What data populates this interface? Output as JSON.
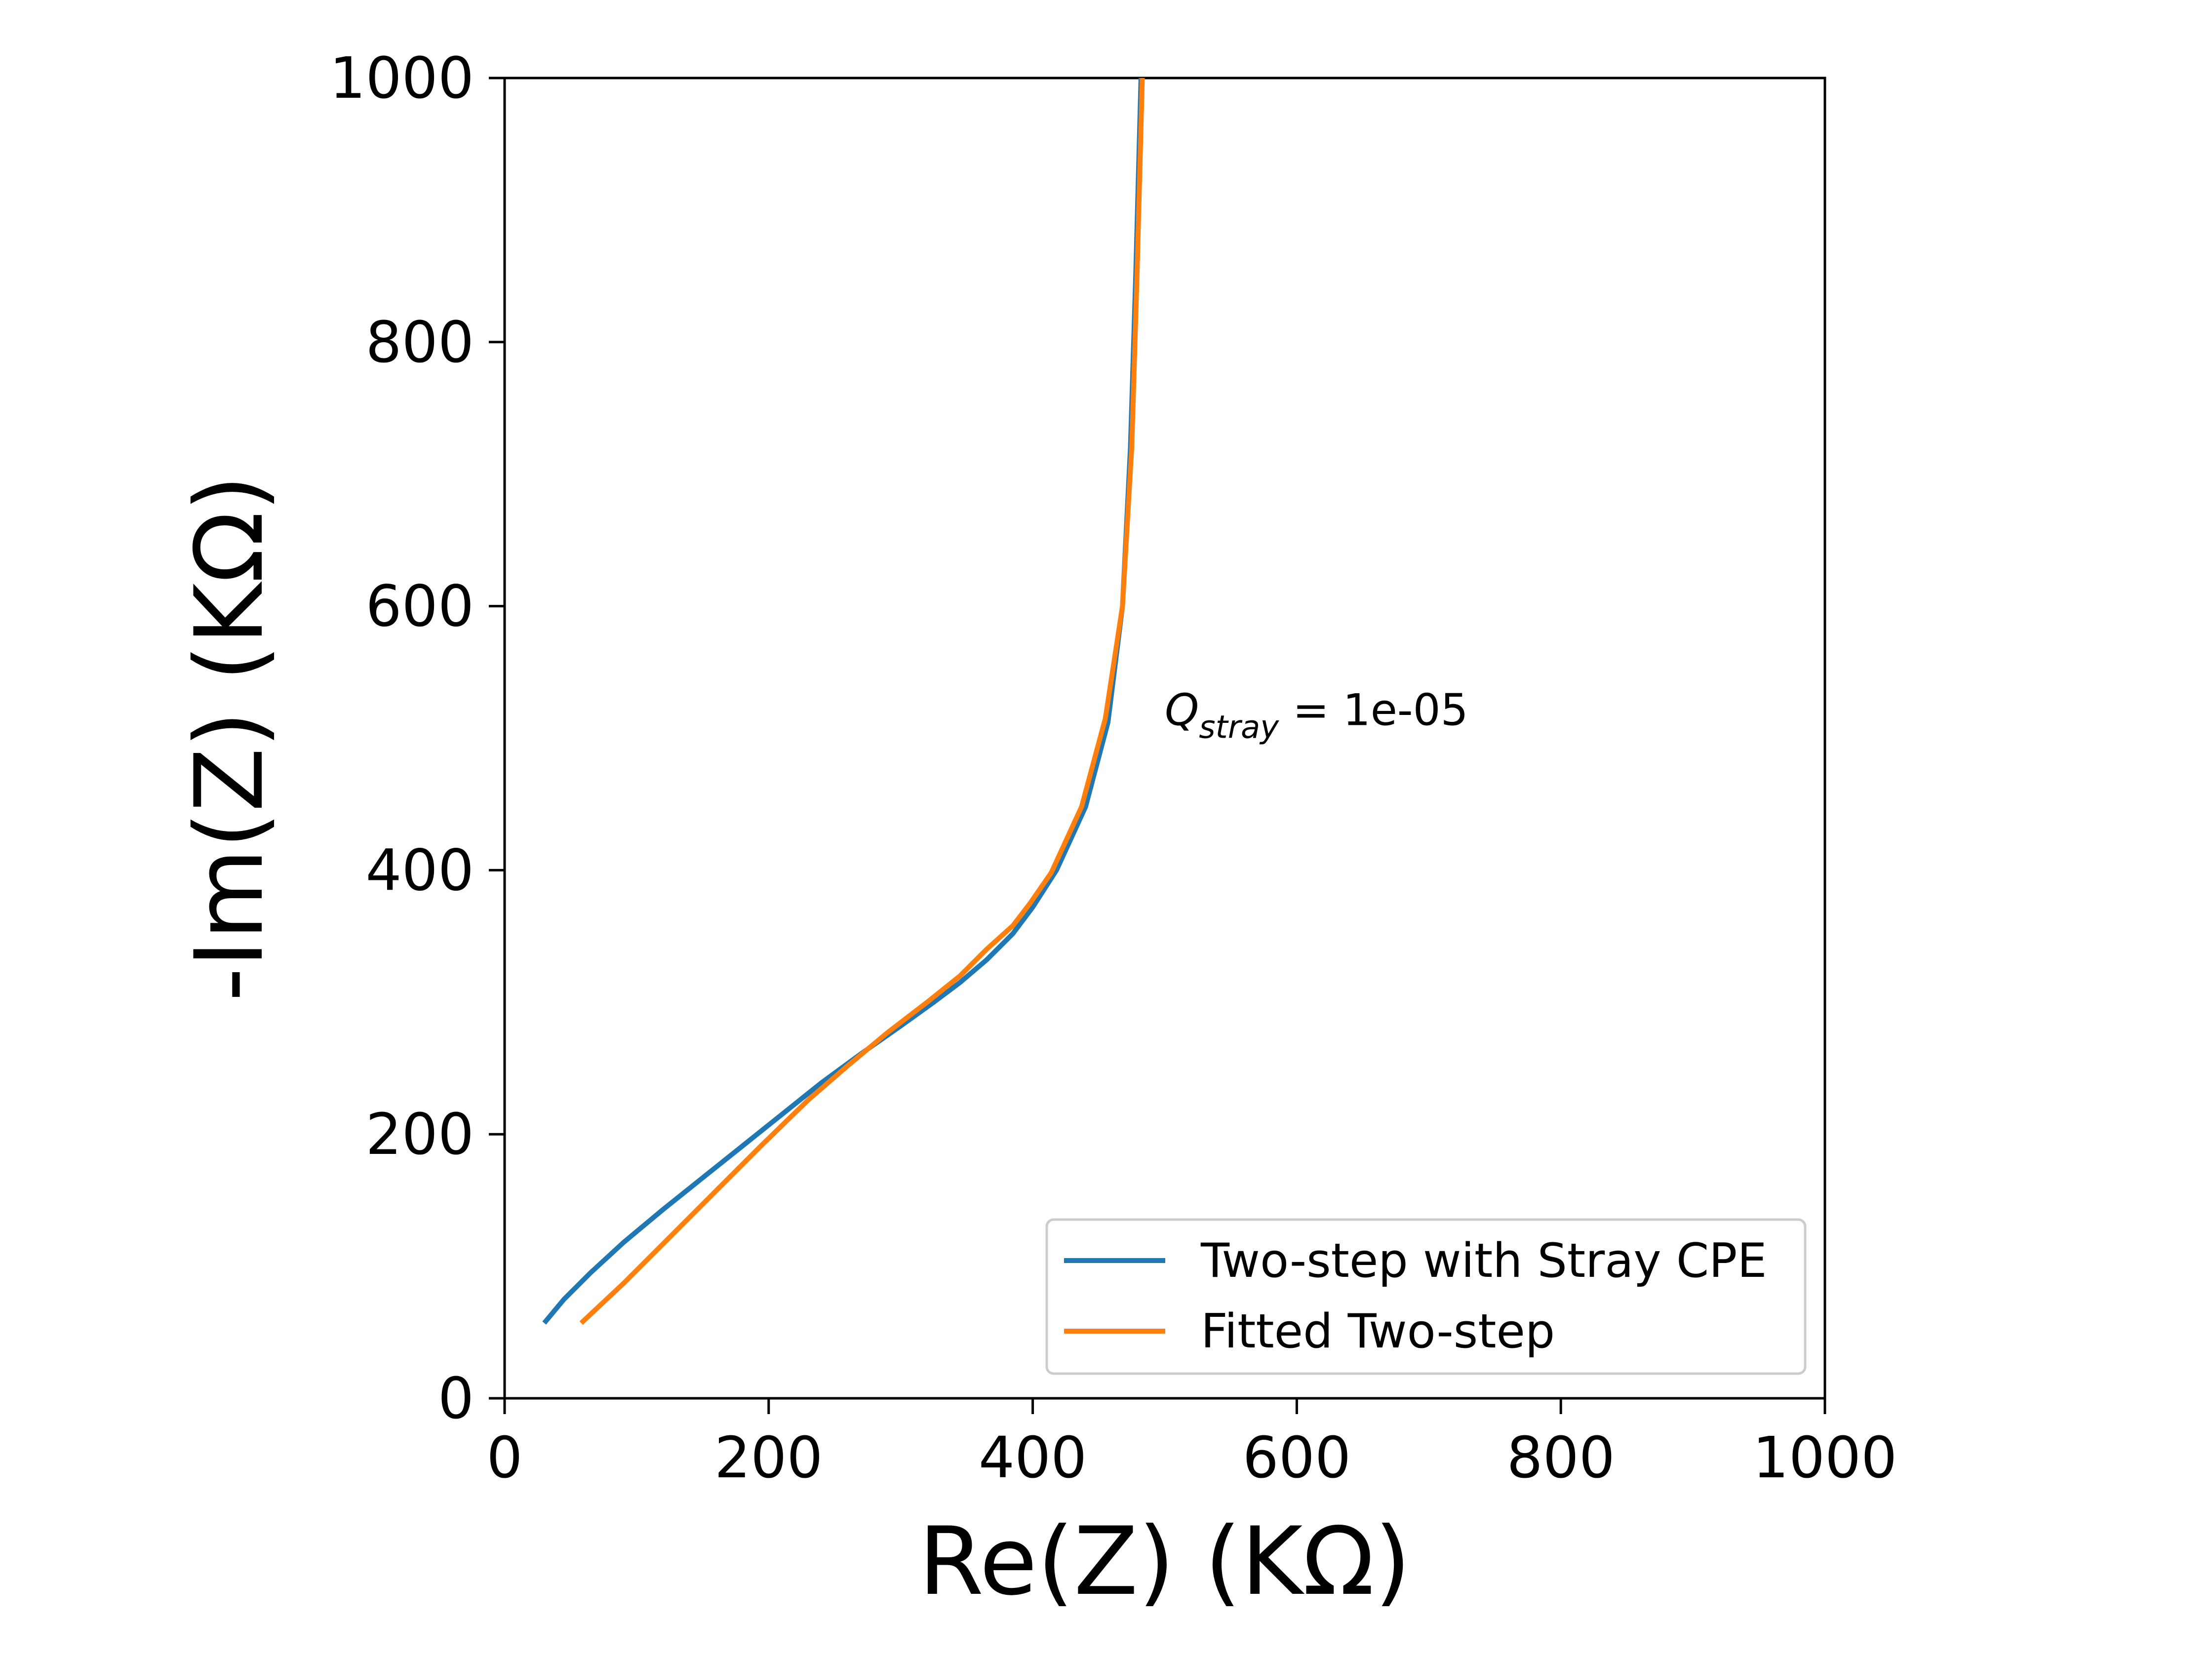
{
  "chart_data": {
    "type": "line",
    "title": "",
    "xlabel": "Re(Z) (KΩ)",
    "ylabel": "-Im(Z) (KΩ)",
    "xlim": [
      0,
      1000
    ],
    "ylim": [
      0,
      1000
    ],
    "xticks": [
      0,
      200,
      400,
      600,
      800,
      1000
    ],
    "yticks": [
      0,
      200,
      400,
      600,
      800,
      1000
    ],
    "xtick_labels": [
      "0",
      "200",
      "400",
      "600",
      "800",
      "1000"
    ],
    "ytick_labels": [
      "0",
      "200",
      "400",
      "600",
      "800",
      "1000"
    ],
    "grid": false,
    "legend_position": "lower-right",
    "annotation": {
      "symbol": "Q",
      "subscript": "stray",
      "equals": " = ",
      "value": "1e-05",
      "x": 500,
      "y": 510
    },
    "series": [
      {
        "name": "Two-step with Stray CPE",
        "color": "#1f77b4",
        "points": [
          [
            30,
            57
          ],
          [
            45,
            75
          ],
          [
            65,
            95
          ],
          [
            90,
            118
          ],
          [
            120,
            143
          ],
          [
            150,
            167
          ],
          [
            180,
            191
          ],
          [
            210,
            215
          ],
          [
            240,
            239
          ],
          [
            270,
            261
          ],
          [
            300,
            282
          ],
          [
            325,
            300
          ],
          [
            345,
            315
          ],
          [
            365,
            332
          ],
          [
            385,
            352
          ],
          [
            400,
            372
          ],
          [
            418,
            400
          ],
          [
            440,
            448
          ],
          [
            457,
            512
          ],
          [
            468,
            600
          ],
          [
            474,
            720
          ],
          [
            478,
            850
          ],
          [
            482,
            1000
          ]
        ]
      },
      {
        "name": "Fitted Two-step",
        "color": "#ff7f0e",
        "points": [
          [
            58,
            57
          ],
          [
            90,
            87
          ],
          [
            125,
            122
          ],
          [
            160,
            157
          ],
          [
            195,
            192
          ],
          [
            230,
            226
          ],
          [
            260,
            252
          ],
          [
            290,
            277
          ],
          [
            320,
            300
          ],
          [
            345,
            320
          ],
          [
            365,
            340
          ],
          [
            385,
            358
          ],
          [
            398,
            375
          ],
          [
            414,
            398
          ],
          [
            437,
            448
          ],
          [
            455,
            515
          ],
          [
            468,
            600
          ],
          [
            475,
            720
          ],
          [
            479,
            850
          ],
          [
            483,
            1000
          ]
        ]
      }
    ]
  }
}
